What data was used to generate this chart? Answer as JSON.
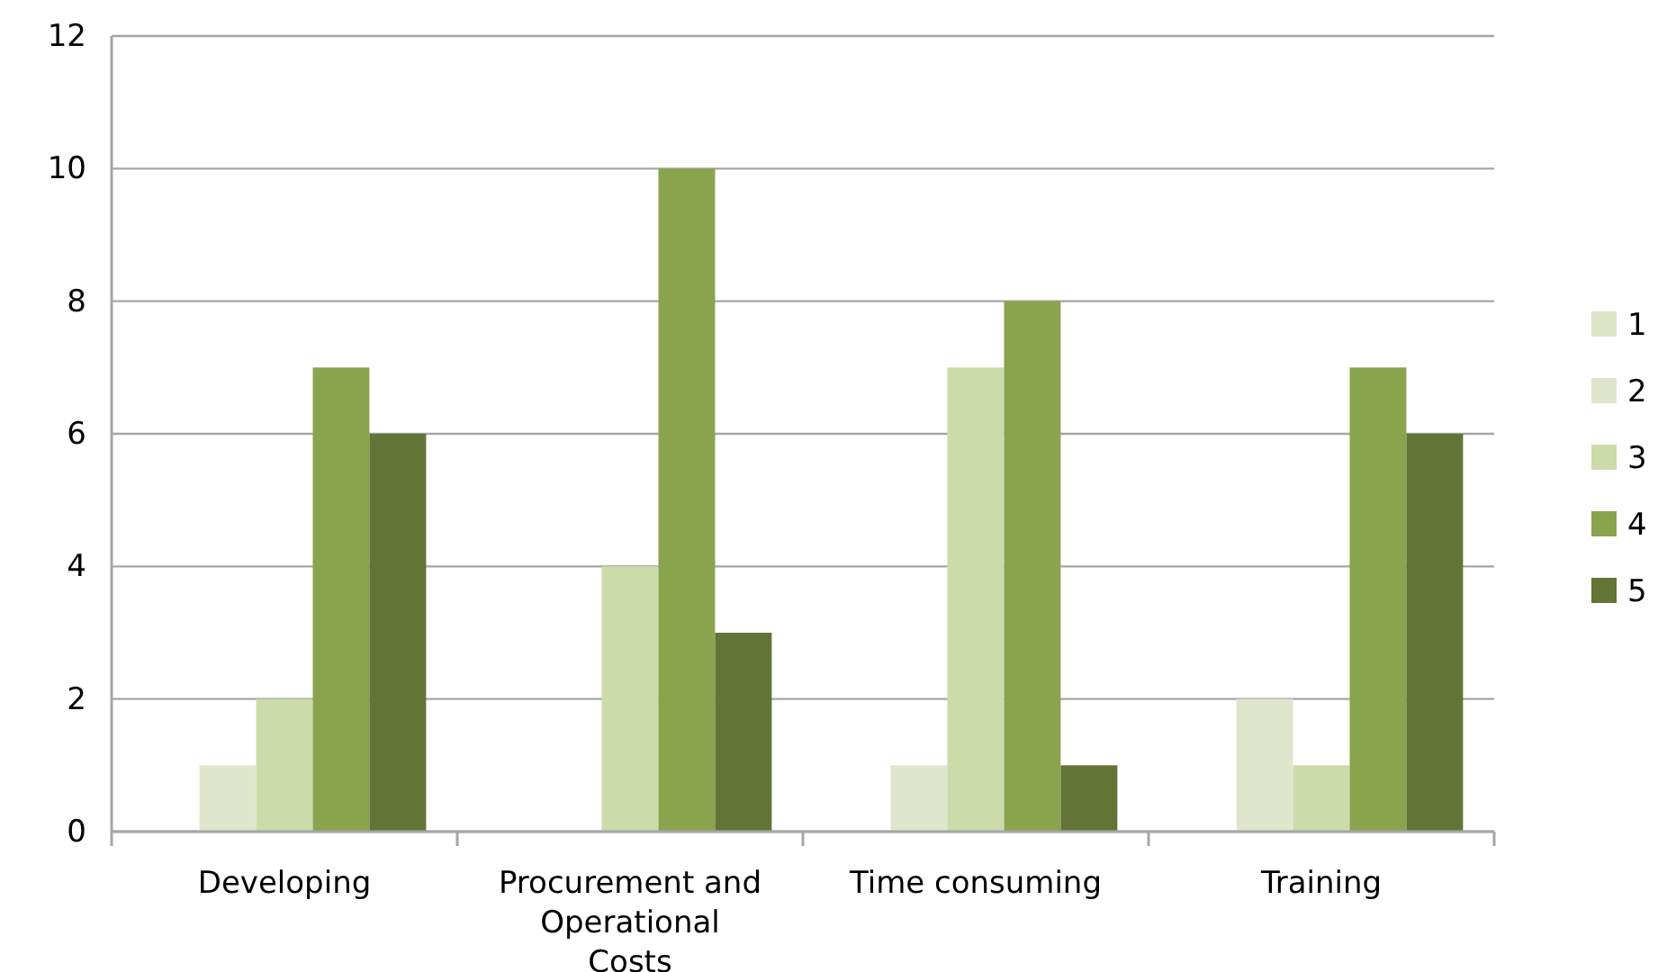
{
  "chart_data": {
    "type": "bar",
    "categories": [
      "Developing",
      "Procurement and Operational Costs",
      "Time consuming",
      "Training"
    ],
    "series": [
      {
        "name": "1",
        "color": "#dce4c6",
        "values": [
          0,
          0,
          0,
          0
        ]
      },
      {
        "name": "2",
        "color": "#dfe6cb",
        "values": [
          1,
          0,
          1,
          2
        ]
      },
      {
        "name": "3",
        "color": "#ccdba9",
        "values": [
          2,
          4,
          7,
          1
        ]
      },
      {
        "name": "4",
        "color": "#8aa44e",
        "values": [
          7,
          10,
          8,
          7
        ]
      },
      {
        "name": "5",
        "color": "#637436",
        "values": [
          6,
          3,
          1,
          6
        ]
      }
    ],
    "ylim": [
      0,
      12
    ],
    "yticks": [
      0,
      2,
      4,
      6,
      8,
      10,
      12
    ],
    "grid": "y",
    "legend": "right"
  }
}
